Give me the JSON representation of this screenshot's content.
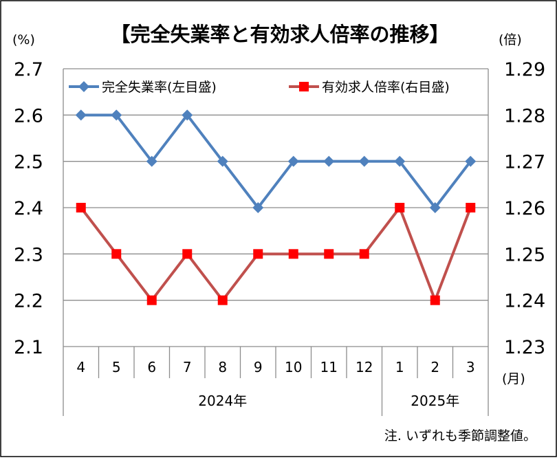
{
  "chart_data": {
    "type": "line",
    "title": "【完全失業率と有効求人倍率の推移】",
    "left_unit": "(%)",
    "right_unit": "(倍)",
    "month_unit": "(月)",
    "note": "注. いずれも季節調整値。",
    "categories": [
      "4",
      "5",
      "6",
      "7",
      "8",
      "9",
      "10",
      "11",
      "12",
      "1",
      "2",
      "3"
    ],
    "year_groups": [
      {
        "label": "2024年",
        "span": 9
      },
      {
        "label": "2025年",
        "span": 3
      }
    ],
    "left_axis": {
      "min": 2.1,
      "max": 2.7,
      "ticks": [
        "2.1",
        "2.2",
        "2.3",
        "2.4",
        "2.5",
        "2.6",
        "2.7"
      ]
    },
    "right_axis": {
      "min": 1.23,
      "max": 1.29,
      "ticks": [
        "1.23",
        "1.24",
        "1.25",
        "1.26",
        "1.27",
        "1.28",
        "1.29"
      ]
    },
    "grid": true,
    "legend_position": "top",
    "series": [
      {
        "name": "完全失業率(左目盛)",
        "axis": "left",
        "marker": "diamond",
        "color": "#4f81bd",
        "values": [
          2.6,
          2.6,
          2.5,
          2.6,
          2.5,
          2.4,
          2.5,
          2.5,
          2.5,
          2.5,
          2.4,
          2.5
        ]
      },
      {
        "name": "有効求人倍率(右目盛)",
        "axis": "right",
        "marker": "square",
        "color": "#c0504d",
        "marker_color": "#ff0000",
        "values": [
          1.26,
          1.25,
          1.24,
          1.25,
          1.24,
          1.25,
          1.25,
          1.25,
          1.25,
          1.26,
          1.24,
          1.26
        ]
      }
    ]
  }
}
